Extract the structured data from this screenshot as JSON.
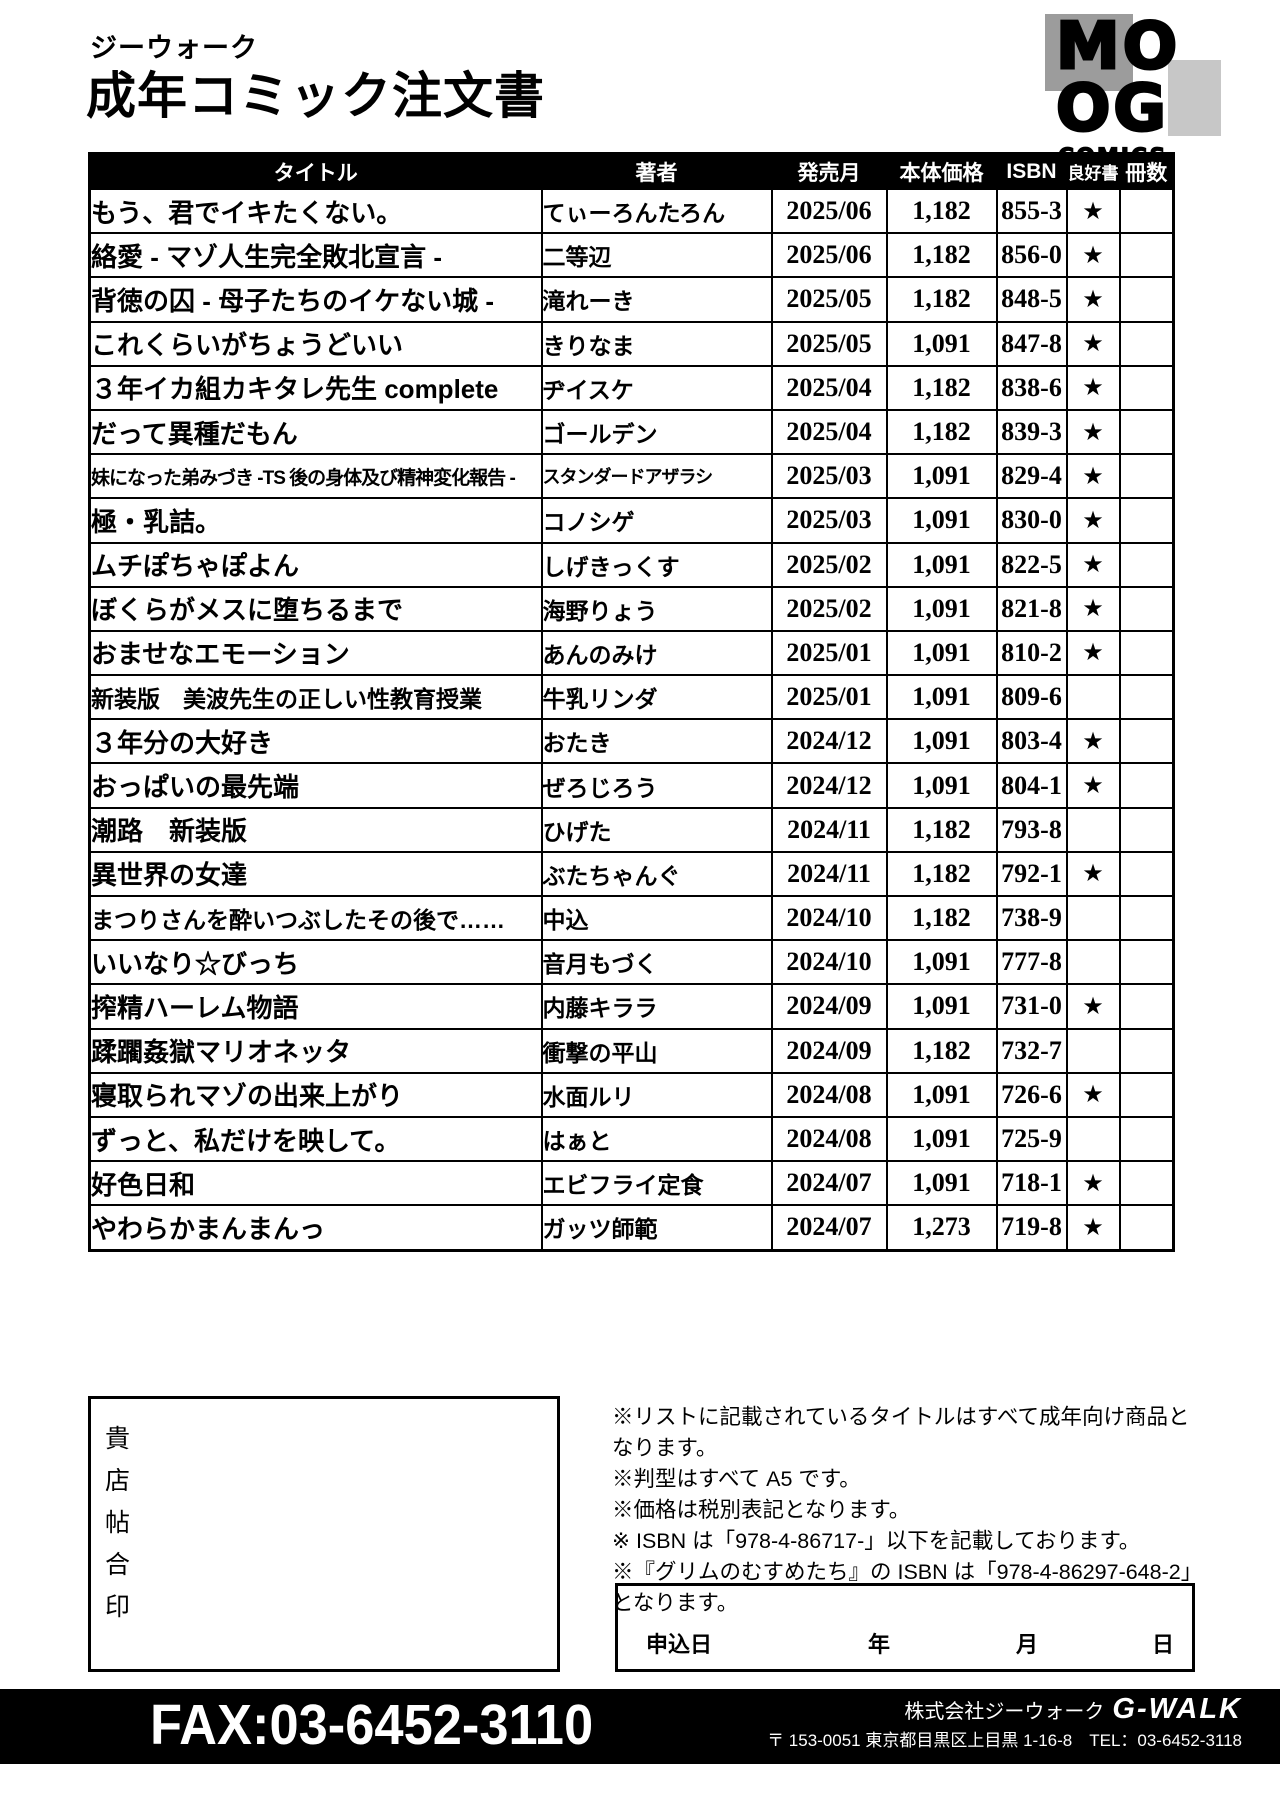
{
  "header": {
    "brand_small": "ジーウォーク",
    "title": "成年コミック注文書"
  },
  "logo": {
    "top": "MO",
    "bottom": "OG",
    "caption": "COMICS"
  },
  "table": {
    "columns": [
      "タイトル",
      "著者",
      "発売月",
      "本体価格",
      "ISBN",
      "良好書",
      "冊数"
    ],
    "rows": [
      {
        "title": "もう、君でイキたくない。",
        "author": "てぃーろんたろん",
        "month": "2025/06",
        "price": "1,182",
        "isbn": "855-3",
        "star": "★",
        "copies": ""
      },
      {
        "title": "絡愛 - マゾ人生完全敗北宣言 -",
        "author": "二等辺",
        "month": "2025/06",
        "price": "1,182",
        "isbn": "856-0",
        "star": "★",
        "copies": ""
      },
      {
        "title": "背徳の囚 - 母子たちのイケない城 -",
        "author": "滝れーき",
        "month": "2025/05",
        "price": "1,182",
        "isbn": "848-5",
        "star": "★",
        "copies": ""
      },
      {
        "title": "これくらいがちょうどいい",
        "author": "きりなま",
        "month": "2025/05",
        "price": "1,091",
        "isbn": "847-8",
        "star": "★",
        "copies": ""
      },
      {
        "title": "３年イカ組カキタレ先生 complete",
        "author": "ヂイスケ",
        "month": "2025/04",
        "price": "1,182",
        "isbn": "838-6",
        "star": "★",
        "copies": ""
      },
      {
        "title": "だって異種だもん",
        "author": "ゴールデン",
        "month": "2025/04",
        "price": "1,182",
        "isbn": "839-3",
        "star": "★",
        "copies": ""
      },
      {
        "title": "妹になった弟みづき -TS 後の身体及び精神変化報告 -",
        "author": "スタンダードアザラシ",
        "month": "2025/03",
        "price": "1,091",
        "isbn": "829-4",
        "star": "★",
        "copies": ""
      },
      {
        "title": "極・乳詰。",
        "author": "コノシゲ",
        "month": "2025/03",
        "price": "1,091",
        "isbn": "830-0",
        "star": "★",
        "copies": ""
      },
      {
        "title": "ムチぽちゃぽよん",
        "author": "しげきっくす",
        "month": "2025/02",
        "price": "1,091",
        "isbn": "822-5",
        "star": "★",
        "copies": ""
      },
      {
        "title": "ぼくらがメスに堕ちるまで",
        "author": "海野りょう",
        "month": "2025/02",
        "price": "1,091",
        "isbn": "821-8",
        "star": "★",
        "copies": ""
      },
      {
        "title": "おませなエモーション",
        "author": "あんのみけ",
        "month": "2025/01",
        "price": "1,091",
        "isbn": "810-2",
        "star": "★",
        "copies": ""
      },
      {
        "title": "新装版　美波先生の正しい性教育授業",
        "author": "牛乳リンダ",
        "month": "2025/01",
        "price": "1,091",
        "isbn": "809-6",
        "star": "",
        "copies": ""
      },
      {
        "title": "３年分の大好き",
        "author": "おたき",
        "month": "2024/12",
        "price": "1,091",
        "isbn": "803-4",
        "star": "★",
        "copies": ""
      },
      {
        "title": "おっぱいの最先端",
        "author": "ぜろじろう",
        "month": "2024/12",
        "price": "1,091",
        "isbn": "804-1",
        "star": "★",
        "copies": ""
      },
      {
        "title": "潮路　新装版",
        "author": "ひげた",
        "month": "2024/11",
        "price": "1,182",
        "isbn": "793-8",
        "star": "",
        "copies": ""
      },
      {
        "title": "異世界の女達",
        "author": "ぶたちゃんぐ",
        "month": "2024/11",
        "price": "1,182",
        "isbn": "792-1",
        "star": "★",
        "copies": ""
      },
      {
        "title": "まつりさんを酔いつぶしたその後で……",
        "author": "中込",
        "month": "2024/10",
        "price": "1,182",
        "isbn": "738-9",
        "star": "",
        "copies": ""
      },
      {
        "title": "いいなり☆びっち",
        "author": "音月もづく",
        "month": "2024/10",
        "price": "1,091",
        "isbn": "777-8",
        "star": "",
        "copies": ""
      },
      {
        "title": "搾精ハーレム物語",
        "author": "内藤キララ",
        "month": "2024/09",
        "price": "1,091",
        "isbn": "731-0",
        "star": "★",
        "copies": ""
      },
      {
        "title": "蹂躙姦獄マリオネッタ",
        "author": "衝撃の平山",
        "month": "2024/09",
        "price": "1,182",
        "isbn": "732-7",
        "star": "",
        "copies": ""
      },
      {
        "title": "寝取られマゾの出来上がり",
        "author": "水面ルリ",
        "month": "2024/08",
        "price": "1,091",
        "isbn": "726-6",
        "star": "★",
        "copies": ""
      },
      {
        "title": "ずっと、私だけを映して。",
        "author": "はぁと",
        "month": "2024/08",
        "price": "1,091",
        "isbn": "725-9",
        "star": "",
        "copies": ""
      },
      {
        "title": "好色日和",
        "author": "エビフライ定食",
        "month": "2024/07",
        "price": "1,091",
        "isbn": "718-1",
        "star": "★",
        "copies": ""
      },
      {
        "title": "やわらかまんまんっ",
        "author": "ガッツ師範",
        "month": "2024/07",
        "price": "1,273",
        "isbn": "719-8",
        "star": "★",
        "copies": ""
      }
    ]
  },
  "stamp_box": {
    "chars": [
      "貴",
      "店",
      "帖",
      "合",
      "印"
    ]
  },
  "notes": [
    "※リストに記載されているタイトルはすべて成年向け商品となります。",
    "※判型はすべて A5 です。",
    "※価格は税別表記となります。",
    "※ ISBN は「978-4-86717-」以下を記載しております。",
    "※『グリムのむすめたち』の ISBN は「978-4-86297-648-2」となります。"
  ],
  "application_box": {
    "label": "申込日",
    "year": "年",
    "month": "月",
    "day": "日"
  },
  "footer": {
    "fax": "FAX:03-6452-3110",
    "company": "株式会社ジーウォーク",
    "brand": "G-WALK",
    "address": "〒 153-0051 東京都目黒区上目黒 1-16-8　TEL：03-6452-3118"
  },
  "colors": {
    "ink": "#000000",
    "paper": "#ffffff",
    "logo_gray_dark": "#9c9c9c",
    "logo_gray_light": "#c7c7c7"
  }
}
